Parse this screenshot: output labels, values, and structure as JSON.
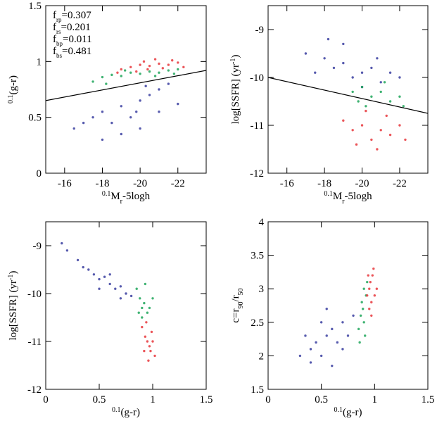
{
  "chart_data": [
    {
      "type": "scatter",
      "xlim": [
        -15,
        -23.5
      ],
      "ylim": [
        0,
        1.5
      ],
      "xticks": [
        -16,
        -18,
        -20,
        -22
      ],
      "yticks": [
        0,
        0.5,
        1,
        1.5
      ],
      "xlabel": [
        {
          "t": "0.1",
          "s": "sup"
        },
        {
          "t": "M"
        },
        {
          "t": "r",
          "s": "sub"
        },
        {
          "t": "-5logh"
        }
      ],
      "ylabel": [
        {
          "t": "0.1",
          "s": "sup"
        },
        {
          "t": "(g-r)"
        }
      ],
      "annotations": [
        {
          "symbol": "f",
          "sub": "rp",
          "text": "=0.307",
          "color": "#e8383d"
        },
        {
          "symbol": "f",
          "sub": "rs",
          "text": "=0.201",
          "color": "#1fa65a"
        },
        {
          "symbol": "f",
          "sub": "bp",
          "text": "=0.011",
          "color": "#d12aa8"
        },
        {
          "symbol": "f",
          "sub": "bs",
          "text": "=0.481",
          "color": "#3a3ea0"
        }
      ],
      "lines": [
        {
          "color": "#000000",
          "x": [
            -15,
            -23.5
          ],
          "values": [
            0.65,
            0.92
          ]
        }
      ],
      "series": [
        {
          "color": "#3a3ea0",
          "x": [
            -17,
            -17.5,
            -18,
            -18.5,
            -19,
            -19.5,
            -20,
            -20.5,
            -21,
            -21.5,
            -19,
            -20,
            -18,
            -21,
            -19.8,
            -20.3,
            -16.5,
            -22
          ],
          "values": [
            0.45,
            0.5,
            0.55,
            0.45,
            0.6,
            0.5,
            0.65,
            0.7,
            0.75,
            0.8,
            0.35,
            0.4,
            0.3,
            0.55,
            0.55,
            0.78,
            0.4,
            0.62
          ]
        },
        {
          "color": "#1fa65a",
          "x": [
            -17.5,
            -18,
            -18.5,
            -19,
            -19.5,
            -20,
            -20.5,
            -21,
            -21.5,
            -22,
            -19.2,
            -20.8,
            -18.2,
            -21.8
          ],
          "values": [
            0.82,
            0.86,
            0.88,
            0.87,
            0.9,
            0.89,
            0.91,
            0.9,
            0.92,
            0.93,
            0.92,
            0.87,
            0.8,
            0.89
          ]
        },
        {
          "color": "#e8383d",
          "x": [
            -19,
            -19.5,
            -20,
            -20.5,
            -21,
            -21.5,
            -22,
            -20.2,
            -19.8,
            -21.2,
            -20.8,
            -18.8,
            -22.3,
            -21.7,
            -20.4
          ],
          "values": [
            0.93,
            0.95,
            0.97,
            0.96,
            0.98,
            0.97,
            0.99,
            1.0,
            0.91,
            0.94,
            1.02,
            0.9,
            0.95,
            1.01,
            0.93
          ]
        }
      ]
    },
    {
      "type": "scatter",
      "xlim": [
        -15,
        -23.5
      ],
      "ylim": [
        -12,
        -8.5
      ],
      "xticks": [
        -16,
        -18,
        -20,
        -22
      ],
      "yticks": [
        -12,
        -11,
        -10,
        -9
      ],
      "xlabel": [
        {
          "t": "0.1",
          "s": "sup"
        },
        {
          "t": "M"
        },
        {
          "t": "r",
          "s": "sub"
        },
        {
          "t": "-5logh"
        }
      ],
      "ylabel": [
        {
          "t": "log[SSFR]  (yr"
        },
        {
          "t": "-1",
          "s": "sup"
        },
        {
          "t": ")"
        }
      ],
      "lines": [
        {
          "color": "#000000",
          "x": [
            -15,
            -23.5
          ],
          "values": [
            -10.0,
            -10.75
          ]
        }
      ],
      "series": [
        {
          "color": "#3a3ea0",
          "x": [
            -17,
            -18,
            -18.5,
            -19,
            -19.5,
            -20,
            -20.5,
            -21,
            -21.5,
            -19,
            -20,
            -17.5,
            -22,
            -18.2,
            -20.8
          ],
          "values": [
            -9.5,
            -9.6,
            -9.8,
            -9.7,
            -10,
            -9.9,
            -9.8,
            -10.1,
            -9.9,
            -9.3,
            -10.2,
            -9.9,
            -10.0,
            -9.2,
            -9.6
          ]
        },
        {
          "color": "#1fa65a",
          "x": [
            -19.5,
            -20,
            -20.5,
            -21,
            -21.5,
            -22,
            -20.2,
            -21.2,
            -19.8,
            -22.2
          ],
          "values": [
            -10.3,
            -10.2,
            -10.4,
            -10.3,
            -10.5,
            -10.4,
            -10.6,
            -10.1,
            -10.5,
            -10.6
          ]
        },
        {
          "color": "#e8383d",
          "x": [
            -19,
            -19.5,
            -20,
            -20.5,
            -21,
            -21.5,
            -22,
            -20.8,
            -21.3,
            -20.2,
            -22.3,
            -19.7
          ],
          "values": [
            -10.9,
            -11.1,
            -11,
            -11.3,
            -11.1,
            -11.2,
            -11,
            -11.5,
            -10.8,
            -10.7,
            -11.3,
            -11.4
          ]
        }
      ]
    },
    {
      "type": "scatter",
      "xlim": [
        0,
        1.5
      ],
      "ylim": [
        -12,
        -8.5
      ],
      "xticks": [
        0,
        0.5,
        1,
        1.5
      ],
      "yticks": [
        -12,
        -11,
        -10,
        -9
      ],
      "xlabel": [
        {
          "t": "0.1",
          "s": "sup"
        },
        {
          "t": "(g-r)"
        }
      ],
      "ylabel": [
        {
          "t": "log[SSFR]  (yr"
        },
        {
          "t": "-1",
          "s": "sup"
        },
        {
          "t": ")"
        }
      ],
      "series": [
        {
          "color": "#3a3ea0",
          "x": [
            0.2,
            0.3,
            0.4,
            0.45,
            0.5,
            0.55,
            0.6,
            0.65,
            0.7,
            0.75,
            0.8,
            0.35,
            0.5,
            0.6,
            0.7,
            0.15
          ],
          "values": [
            -9.1,
            -9.3,
            -9.5,
            -9.6,
            -9.7,
            -9.65,
            -9.8,
            -9.9,
            -9.85,
            -10,
            -10.05,
            -9.45,
            -9.9,
            -9.6,
            -10.1,
            -8.95
          ]
        },
        {
          "color": "#1fa65a",
          "x": [
            0.85,
            0.88,
            0.9,
            0.92,
            0.95,
            0.97,
            0.9,
            0.87,
            1.0,
            0.93
          ],
          "values": [
            -9.9,
            -10.1,
            -10.3,
            -10.2,
            -10.4,
            -10.3,
            -10.5,
            -10.4,
            -10.1,
            -9.8
          ]
        },
        {
          "color": "#e8383d",
          "x": [
            0.9,
            0.93,
            0.95,
            0.97,
            0.98,
            1.0,
            0.96,
            0.94,
            1.02,
            0.92,
            0.99
          ],
          "values": [
            -10.7,
            -10.9,
            -11,
            -11.1,
            -11.2,
            -11,
            -11.4,
            -10.6,
            -11.3,
            -11.2,
            -10.8
          ]
        }
      ]
    },
    {
      "type": "scatter",
      "xlim": [
        0,
        1.5
      ],
      "ylim": [
        1.5,
        4
      ],
      "xticks": [
        0,
        0.5,
        1,
        1.5
      ],
      "yticks": [
        1.5,
        2,
        2.5,
        3,
        3.5,
        4
      ],
      "xlabel": [
        {
          "t": "0.1",
          "s": "sup"
        },
        {
          "t": "(g-r)"
        }
      ],
      "ylabel": [
        {
          "t": "c=r"
        },
        {
          "t": "90",
          "s": "sub"
        },
        {
          "t": "/r"
        },
        {
          "t": "50",
          "s": "sub"
        }
      ],
      "series": [
        {
          "color": "#3a3ea0",
          "x": [
            0.3,
            0.4,
            0.45,
            0.5,
            0.55,
            0.6,
            0.65,
            0.7,
            0.75,
            0.8,
            0.5,
            0.4,
            0.6,
            0.7,
            0.35,
            0.55
          ],
          "values": [
            2.0,
            2.1,
            2.2,
            2.0,
            2.3,
            2.4,
            2.2,
            2.5,
            2.3,
            2.6,
            2.5,
            1.9,
            1.85,
            2.1,
            2.3,
            2.7
          ]
        },
        {
          "color": "#1fa65a",
          "x": [
            0.85,
            0.87,
            0.88,
            0.9,
            0.9,
            0.92,
            0.86,
            0.93,
            0.89,
            0.91
          ],
          "values": [
            2.4,
            2.6,
            2.8,
            3.0,
            2.5,
            2.9,
            2.2,
            3.1,
            2.7,
            2.3
          ]
        },
        {
          "color": "#e8383d",
          "x": [
            0.93,
            0.95,
            0.96,
            0.97,
            0.98,
            1.0,
            0.95,
            0.99,
            1.02,
            0.94,
            0.97
          ],
          "values": [
            2.9,
            3.0,
            3.1,
            2.8,
            3.2,
            2.9,
            2.7,
            3.3,
            3.0,
            3.2,
            2.6
          ]
        }
      ]
    }
  ]
}
